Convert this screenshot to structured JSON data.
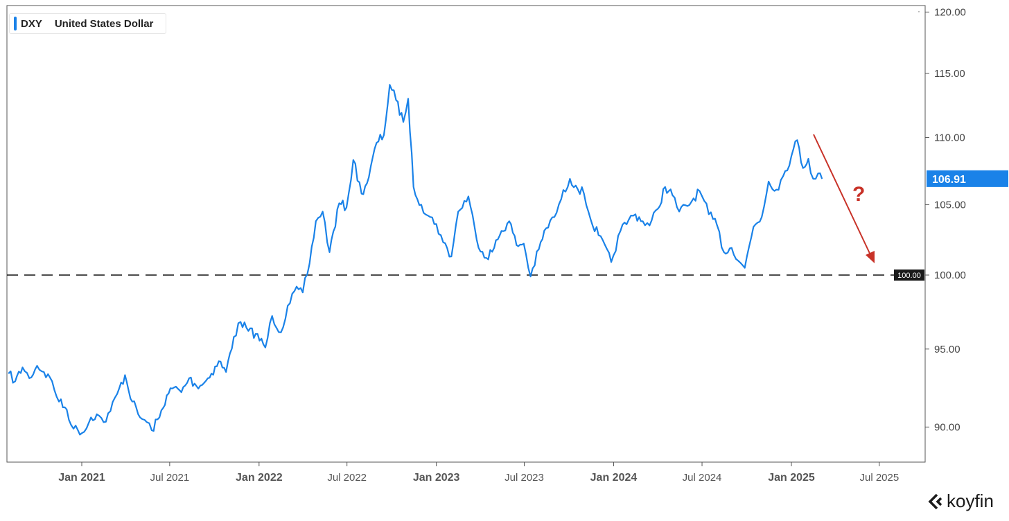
{
  "legend": {
    "ticker": "DXY",
    "name": "United States Dollar",
    "color": "#1a82e8"
  },
  "branding": {
    "logo_text": "koyfin",
    "logo_icon": "koyfin-chevron-icon"
  },
  "annotations": {
    "question_mark": "?",
    "arrow_color": "#c83228"
  },
  "chart_data": {
    "type": "line",
    "title": "",
    "xlabel": "",
    "ylabel": "",
    "x_ticks": [
      "Jan 2021",
      "Jul 2021",
      "Jan 2022",
      "Jul 2022",
      "Jan 2023",
      "Jul 2023",
      "Jan 2024",
      "Jul 2024",
      "Jan 2025",
      "Jul 2025"
    ],
    "y_ticks": [
      "90.00",
      "95.00",
      "100.00",
      "105.00",
      "110.00",
      "115.00",
      "120.00"
    ],
    "ylim": [
      88,
      120.2
    ],
    "xlim": [
      "2020-08-01",
      "2025-09-01"
    ],
    "y_scale": "log",
    "grid": false,
    "legend_position": "top-left",
    "last_value_label": "106.91",
    "reference_line": {
      "value": 100,
      "label": "100.00",
      "style": "dashed"
    },
    "series": [
      {
        "name": "DXY",
        "x": [
          "2020-08-03",
          "2020-08-17",
          "2020-09-01",
          "2020-09-15",
          "2020-10-01",
          "2020-10-15",
          "2020-11-01",
          "2020-11-15",
          "2020-12-01",
          "2020-12-15",
          "2021-01-06",
          "2021-01-20",
          "2021-02-01",
          "2021-02-15",
          "2021-03-01",
          "2021-03-15",
          "2021-03-31",
          "2021-04-15",
          "2021-05-01",
          "2021-05-15",
          "2021-05-25",
          "2021-06-10",
          "2021-06-25",
          "2021-07-10",
          "2021-07-25",
          "2021-08-10",
          "2021-08-25",
          "2021-09-10",
          "2021-09-25",
          "2021-10-10",
          "2021-10-25",
          "2021-11-10",
          "2021-11-24",
          "2021-12-10",
          "2021-12-25",
          "2022-01-14",
          "2022-01-28",
          "2022-02-15",
          "2022-03-01",
          "2022-03-15",
          "2022-04-01",
          "2022-04-15",
          "2022-04-28",
          "2022-05-12",
          "2022-05-26",
          "2022-06-15",
          "2022-06-30",
          "2022-07-14",
          "2022-07-31",
          "2022-08-15",
          "2022-08-31",
          "2022-09-15",
          "2022-09-27",
          "2022-10-10",
          "2022-10-25",
          "2022-11-04",
          "2022-11-15",
          "2022-12-01",
          "2022-12-15",
          "2023-01-01",
          "2023-01-15",
          "2023-02-01",
          "2023-02-15",
          "2023-03-08",
          "2023-03-25",
          "2023-04-14",
          "2023-04-30",
          "2023-05-15",
          "2023-05-31",
          "2023-06-15",
          "2023-06-30",
          "2023-07-14",
          "2023-07-31",
          "2023-08-15",
          "2023-09-01",
          "2023-09-15",
          "2023-10-03",
          "2023-10-15",
          "2023-11-01",
          "2023-11-15",
          "2023-12-01",
          "2023-12-27",
          "2024-01-15",
          "2024-02-01",
          "2024-02-15",
          "2024-03-01",
          "2024-03-15",
          "2024-04-01",
          "2024-04-16",
          "2024-05-01",
          "2024-05-15",
          "2024-06-01",
          "2024-06-26",
          "2024-07-15",
          "2024-08-01",
          "2024-08-15",
          "2024-08-31",
          "2024-09-27",
          "2024-10-15",
          "2024-11-01",
          "2024-11-15",
          "2024-12-01",
          "2024-12-15",
          "2025-01-01",
          "2025-01-13",
          "2025-01-25",
          "2025-02-05",
          "2025-02-15",
          "2025-02-25",
          "2025-03-05"
        ],
        "values": [
          93.4,
          92.9,
          93.8,
          93.1,
          93.9,
          93.5,
          92.9,
          91.6,
          91.1,
          89.9,
          89.7,
          90.6,
          90.8,
          90.3,
          91.0,
          92.1,
          93.3,
          91.6,
          90.6,
          90.3,
          89.8,
          90.6,
          92.0,
          92.5,
          92.2,
          93.1,
          92.6,
          92.8,
          93.4,
          94.2,
          93.5,
          95.8,
          96.8,
          96.2,
          96.0,
          95.1,
          97.2,
          96.1,
          97.9,
          98.9,
          98.8,
          100.8,
          103.8,
          104.5,
          101.6,
          105.1,
          104.8,
          108.3,
          105.8,
          107.0,
          109.6,
          110.2,
          114.1,
          112.9,
          111.2,
          113.0,
          106.3,
          105.0,
          104.2,
          103.6,
          102.3,
          101.3,
          104.5,
          105.6,
          102.5,
          101.2,
          101.9,
          103.1,
          103.8,
          102.1,
          102.2,
          99.9,
          101.8,
          103.3,
          104.1,
          105.4,
          106.9,
          106.4,
          105.8,
          103.9,
          102.8,
          100.9,
          103.1,
          103.9,
          104.3,
          103.8,
          103.5,
          104.7,
          106.3,
          105.7,
          104.5,
          104.9,
          106.0,
          104.3,
          103.5,
          101.6,
          101.9,
          100.5,
          103.4,
          104.1,
          106.7,
          106.1,
          107.1,
          108.6,
          109.8,
          107.7,
          108.4,
          106.9,
          107.3,
          106.9
        ]
      }
    ]
  }
}
